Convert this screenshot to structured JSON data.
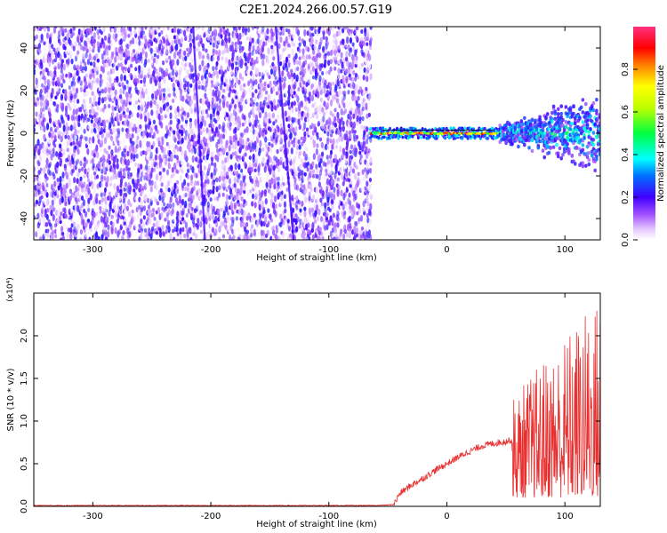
{
  "title": "C2E1.2024.266.00.57.G19",
  "chart_data": [
    {
      "type": "heatmap",
      "xlabel": "Height of straight line (km)",
      "ylabel": "Frequency (Hz)",
      "xlim": [
        -350,
        130
      ],
      "ylim": [
        -50,
        50
      ],
      "x_ticks": [
        -300,
        -200,
        -100,
        0,
        100
      ],
      "y_ticks": [
        -40,
        -20,
        0,
        20,
        40
      ],
      "regions": [
        {
          "x_start": -350,
          "x_end": -65,
          "pattern": "diffuse noise",
          "amplitude_range": [
            0.0,
            0.15
          ]
        },
        {
          "x_start": -65,
          "x_end": 45,
          "pattern": "narrow band near 0 Hz",
          "amplitude_range": [
            0.4,
            1.0
          ]
        },
        {
          "x_start": 45,
          "x_end": 130,
          "pattern": "broadening band",
          "amplitude_range": [
            0.1,
            0.5
          ]
        }
      ],
      "colorbar": {
        "label": "Normalized spectral amplitude",
        "range": [
          0.0,
          1.0
        ],
        "ticks": [
          "0.0",
          "0.2",
          "0.4",
          "0.6",
          "0.8"
        ]
      }
    },
    {
      "type": "line",
      "xlabel": "Height of straight line (km)",
      "ylabel": "SNR (10 * v/v)",
      "scale_note": "(x10⁴)",
      "xlim": [
        -350,
        130
      ],
      "ylim": [
        0.0,
        2.5
      ],
      "x_ticks": [
        -300,
        -200,
        -100,
        0,
        100
      ],
      "y_ticks": [
        "0.0",
        "0.5",
        "1.0",
        "1.5",
        "2.0"
      ],
      "series": [
        {
          "color": "#e83030",
          "points": [
            [
              -350,
              0.01
            ],
            [
              -300,
              0.01
            ],
            [
              -250,
              0.01
            ],
            [
              -200,
              0.01
            ],
            [
              -150,
              0.01
            ],
            [
              -100,
              0.01
            ],
            [
              -60,
              0.01
            ],
            [
              -45,
              0.02
            ],
            [
              -40,
              0.15
            ],
            [
              -30,
              0.25
            ],
            [
              -20,
              0.33
            ],
            [
              -10,
              0.42
            ],
            [
              0,
              0.5
            ],
            [
              10,
              0.58
            ],
            [
              20,
              0.65
            ],
            [
              30,
              0.71
            ],
            [
              40,
              0.74
            ],
            [
              50,
              0.76
            ],
            [
              55,
              0.78
            ],
            [
              60,
              0.85
            ],
            [
              70,
              0.8
            ],
            [
              80,
              0.82
            ],
            [
              90,
              0.78
            ],
            [
              100,
              0.8
            ],
            [
              110,
              0.82
            ],
            [
              120,
              0.8
            ],
            [
              130,
              0.85
            ]
          ],
          "noise_above_km": 55,
          "noise_envelope": [
            0.1,
            2.5
          ]
        }
      ]
    }
  ]
}
